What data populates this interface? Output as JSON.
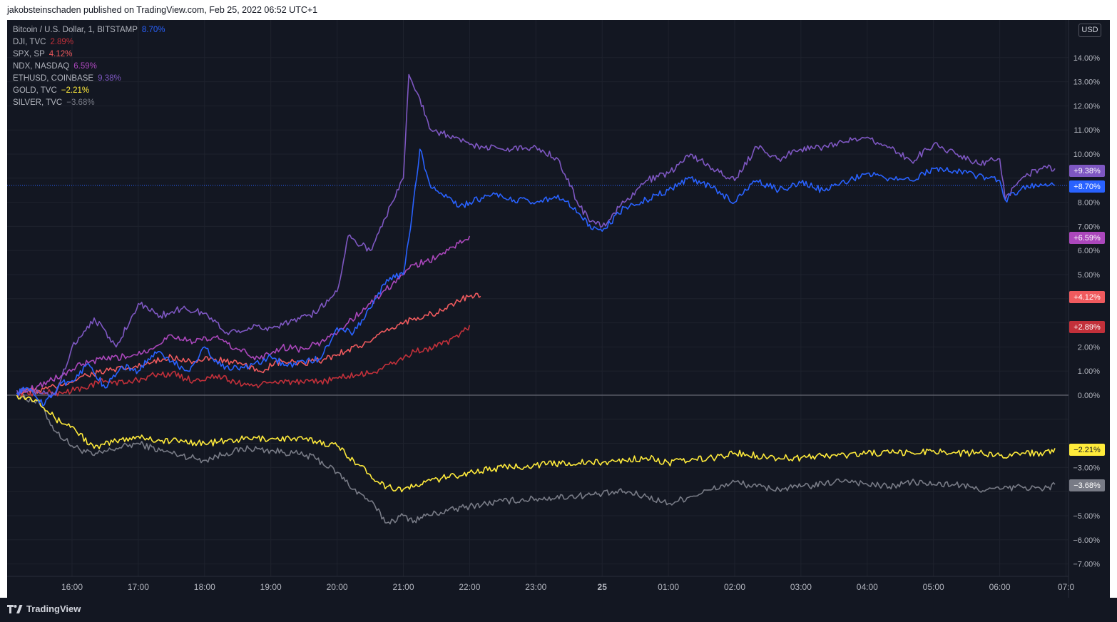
{
  "header": {
    "publisher_line": "jakobsteinschaden published on TradingView.com, Feb 25, 2022 06:52 UTC+1"
  },
  "toolbar": {
    "currency_label": "USD"
  },
  "footer": {
    "brand": "TradingView"
  },
  "colors": {
    "background": "#131722",
    "grid": "#1e222d",
    "zero_line": "#787b86",
    "btc": "#2962ff",
    "dji": "#c2303a",
    "spx": "#f05a5e",
    "ndx": "#ab47bc",
    "eth": "#7e57c2",
    "gold": "#ffeb3b",
    "silver": "#787b86"
  },
  "chart_data": {
    "type": "line",
    "title": "",
    "xlabel": "",
    "ylabel": "",
    "y_unit": "%",
    "ylim": [
      -7.7,
      15.0
    ],
    "y_ticks": [
      14,
      13,
      12,
      11,
      10,
      8,
      7,
      6,
      5,
      2,
      1,
      0,
      -3,
      -5,
      -6,
      -7
    ],
    "y_tick_labels": [
      "14.00%",
      "13.00%",
      "12.00%",
      "11.00%",
      "10.00%",
      "8.00%",
      "7.00%",
      "6.00%",
      "5.00%",
      "2.00%",
      "1.00%",
      "0.00%",
      "−3.00%",
      "−5.00%",
      "−6.00%",
      "−7.00%"
    ],
    "x_time_range": [
      "15:10",
      "07:00"
    ],
    "x_ticks": [
      "16:00",
      "17:00",
      "18:00",
      "19:00",
      "20:00",
      "21:00",
      "22:00",
      "23:00",
      "25",
      "01:00",
      "02:00",
      "03:00",
      "04:00",
      "05:00",
      "06:00",
      "07:0"
    ],
    "x_ticks_hours": [
      16,
      17,
      18,
      19,
      20,
      21,
      22,
      23,
      24,
      25,
      26,
      27,
      28,
      29,
      30,
      31
    ],
    "legend_placement": "top-left",
    "grid": true,
    "series": [
      {
        "key": "btc",
        "name": "Bitcoin / U.S. Dollar, 1, BITSTAMP",
        "last": "8.70%",
        "badge": "+8.70%",
        "color": "#2962ff",
        "dotted_last_line": true,
        "x": [
          "15:10",
          "15:20",
          "15:35",
          "15:50",
          "16:00",
          "16:15",
          "16:30",
          "16:45",
          "17:00",
          "17:15",
          "17:30",
          "17:45",
          "18:00",
          "18:15",
          "18:30",
          "18:45",
          "19:00",
          "19:15",
          "19:30",
          "19:45",
          "20:00",
          "20:15",
          "20:30",
          "20:45",
          "21:00",
          "21:05",
          "21:15",
          "21:25",
          "21:40",
          "21:50",
          "22:00",
          "22:20",
          "22:40",
          "23:00",
          "23:20",
          "23:40",
          "23:50",
          "24:00",
          "24:20",
          "24:40",
          "25:00",
          "25:20",
          "25:40",
          "26:00",
          "26:20",
          "26:40",
          "27:00",
          "27:20",
          "27:40",
          "28:00",
          "28:20",
          "28:40",
          "29:00",
          "29:20",
          "29:40",
          "30:00",
          "30:05",
          "30:20",
          "30:40",
          "30:50"
        ],
        "y": [
          0.1,
          0.3,
          -0.4,
          0.5,
          0.6,
          1.3,
          0.3,
          1.2,
          1.0,
          1.8,
          1.4,
          1.0,
          2.0,
          1.2,
          1.1,
          1.3,
          1.6,
          1.2,
          1.4,
          1.5,
          2.8,
          2.6,
          3.6,
          4.8,
          5.0,
          6.5,
          10.2,
          8.6,
          8.2,
          7.8,
          8.0,
          8.3,
          8.1,
          8.0,
          8.3,
          7.5,
          6.9,
          6.8,
          7.8,
          8.1,
          8.5,
          9.0,
          8.6,
          8.0,
          8.9,
          8.5,
          8.8,
          8.5,
          8.8,
          9.2,
          9.0,
          8.9,
          9.4,
          9.3,
          9.1,
          8.9,
          8.1,
          8.6,
          8.7,
          8.7
        ]
      },
      {
        "key": "dji",
        "name": "DJI, TVC",
        "last": "2.89%",
        "badge": "+2.89%",
        "color": "#c2303a",
        "x": [
          "15:10",
          "15:30",
          "15:50",
          "16:10",
          "16:30",
          "16:50",
          "17:10",
          "17:30",
          "17:50",
          "18:10",
          "18:30",
          "18:50",
          "19:10",
          "19:30",
          "19:50",
          "20:10",
          "20:30",
          "20:50",
          "21:10",
          "21:30",
          "21:50",
          "22:00"
        ],
        "y": [
          0.1,
          0.1,
          0.1,
          0.3,
          0.6,
          0.5,
          0.8,
          0.9,
          0.6,
          0.8,
          0.5,
          0.4,
          0.6,
          0.5,
          0.6,
          0.8,
          0.9,
          1.3,
          1.8,
          2.0,
          2.4,
          2.9
        ]
      },
      {
        "key": "spx",
        "name": "SPX, SP",
        "last": "4.12%",
        "badge": "+4.12%",
        "color": "#f05a5e",
        "x": [
          "15:10",
          "15:30",
          "15:50",
          "16:10",
          "16:30",
          "16:50",
          "17:10",
          "17:30",
          "17:50",
          "18:10",
          "18:30",
          "18:50",
          "19:10",
          "19:30",
          "19:50",
          "20:10",
          "20:30",
          "20:50",
          "21:10",
          "21:30",
          "21:50",
          "22:00",
          "22:10"
        ],
        "y": [
          0.1,
          0.2,
          0.4,
          0.8,
          1.0,
          1.1,
          1.3,
          1.6,
          1.4,
          1.5,
          1.3,
          1.0,
          1.4,
          1.3,
          1.5,
          1.9,
          2.2,
          2.8,
          3.2,
          3.4,
          3.9,
          4.1,
          4.1
        ]
      },
      {
        "key": "ndx",
        "name": "NDX, NASDAQ",
        "last": "6.59%",
        "badge": "+6.59%",
        "color": "#ab47bc",
        "x": [
          "15:10",
          "15:30",
          "15:50",
          "16:10",
          "16:30",
          "16:50",
          "17:10",
          "17:30",
          "17:50",
          "18:10",
          "18:30",
          "18:50",
          "19:10",
          "19:30",
          "19:50",
          "20:10",
          "20:30",
          "20:50",
          "21:10",
          "21:30",
          "21:50",
          "22:00"
        ],
        "y": [
          0.1,
          0.4,
          0.8,
          1.3,
          1.5,
          1.6,
          1.9,
          2.5,
          2.2,
          2.4,
          1.9,
          1.5,
          2.0,
          1.9,
          2.3,
          3.0,
          3.8,
          4.6,
          5.4,
          5.7,
          6.3,
          6.6
        ]
      },
      {
        "key": "eth",
        "name": "ETHUSD, COINBASE",
        "last": "9.38%",
        "badge": "+9.38%",
        "color": "#7e57c2",
        "x": [
          "15:10",
          "15:30",
          "15:45",
          "16:00",
          "16:20",
          "16:40",
          "17:00",
          "17:20",
          "17:40",
          "18:00",
          "18:20",
          "18:40",
          "19:00",
          "19:20",
          "19:40",
          "20:00",
          "20:10",
          "20:30",
          "20:50",
          "21:00",
          "21:05",
          "21:15",
          "21:25",
          "21:40",
          "22:00",
          "22:30",
          "23:00",
          "23:20",
          "23:40",
          "23:50",
          "24:00",
          "24:20",
          "24:40",
          "25:00",
          "25:20",
          "25:40",
          "26:00",
          "26:20",
          "26:40",
          "27:00",
          "27:20",
          "27:40",
          "28:00",
          "28:20",
          "28:40",
          "29:00",
          "29:20",
          "29:40",
          "30:00",
          "30:05",
          "30:20",
          "30:40",
          "30:50"
        ],
        "y": [
          0.2,
          0.1,
          0.0,
          2.0,
          3.2,
          2.0,
          3.8,
          3.3,
          3.6,
          3.4,
          2.6,
          2.8,
          2.8,
          3.1,
          3.4,
          4.3,
          6.6,
          6.0,
          8.0,
          9.0,
          13.3,
          12.3,
          11.0,
          10.8,
          10.4,
          10.2,
          10.3,
          9.8,
          7.8,
          7.2,
          7.0,
          8.0,
          8.9,
          9.2,
          10.0,
          9.4,
          8.9,
          10.3,
          9.8,
          10.2,
          10.3,
          10.5,
          10.7,
          10.3,
          9.7,
          10.4,
          10.0,
          9.6,
          9.8,
          8.1,
          9.0,
          9.5,
          9.4
        ]
      },
      {
        "key": "gold",
        "name": "GOLD, TVC",
        "last": "−2.21%",
        "badge": "−2.21%",
        "color": "#ffeb3b",
        "x": [
          "15:10",
          "15:30",
          "15:45",
          "16:00",
          "16:20",
          "16:40",
          "17:00",
          "17:20",
          "17:40",
          "18:00",
          "18:20",
          "18:40",
          "19:00",
          "19:20",
          "19:40",
          "20:00",
          "20:15",
          "20:30",
          "20:45",
          "21:00",
          "21:10",
          "21:20",
          "21:40",
          "22:00",
          "22:30",
          "23:00",
          "23:30",
          "24:00",
          "24:20",
          "24:40",
          "25:00",
          "25:20",
          "25:40",
          "26:00",
          "26:20",
          "26:40",
          "27:00",
          "27:20",
          "27:40",
          "28:00",
          "28:20",
          "28:40",
          "29:00",
          "29:20",
          "29:40",
          "30:00",
          "30:20",
          "30:40",
          "30:50"
        ],
        "y": [
          0.0,
          -0.2,
          -1.0,
          -1.3,
          -2.2,
          -1.9,
          -1.7,
          -1.9,
          -1.9,
          -2.0,
          -1.9,
          -1.8,
          -1.8,
          -1.8,
          -1.9,
          -2.1,
          -2.7,
          -3.3,
          -3.8,
          -3.9,
          -3.8,
          -3.6,
          -3.4,
          -3.2,
          -3.0,
          -2.9,
          -2.8,
          -2.8,
          -2.7,
          -2.6,
          -2.8,
          -2.7,
          -2.6,
          -2.4,
          -2.5,
          -2.6,
          -2.6,
          -2.5,
          -2.5,
          -2.4,
          -2.4,
          -2.4,
          -2.3,
          -2.4,
          -2.4,
          -2.5,
          -2.4,
          -2.4,
          -2.2
        ]
      },
      {
        "key": "silver",
        "name": "SILVER, TVC",
        "last": "−3.68%",
        "badge": "−3.68%",
        "color": "#787b86",
        "x": [
          "15:10",
          "15:30",
          "15:45",
          "16:00",
          "16:20",
          "16:40",
          "17:00",
          "17:20",
          "17:40",
          "18:00",
          "18:20",
          "18:40",
          "19:00",
          "19:20",
          "19:40",
          "20:00",
          "20:15",
          "20:30",
          "20:45",
          "21:00",
          "21:10",
          "21:20",
          "21:40",
          "22:00",
          "22:30",
          "23:00",
          "23:30",
          "24:00",
          "24:20",
          "24:40",
          "25:00",
          "25:20",
          "25:40",
          "26:00",
          "26:20",
          "26:40",
          "27:00",
          "27:20",
          "27:40",
          "28:00",
          "28:20",
          "28:40",
          "29:00",
          "29:20",
          "29:40",
          "30:00",
          "30:20",
          "30:40",
          "30:50"
        ],
        "y": [
          0.0,
          -0.3,
          -1.5,
          -2.1,
          -2.5,
          -2.2,
          -2.0,
          -2.3,
          -2.5,
          -2.7,
          -2.4,
          -2.2,
          -2.3,
          -2.4,
          -2.6,
          -3.2,
          -3.9,
          -4.4,
          -5.3,
          -5.0,
          -5.2,
          -5.0,
          -4.8,
          -4.6,
          -4.4,
          -4.3,
          -4.2,
          -4.1,
          -4.0,
          -4.2,
          -4.5,
          -4.2,
          -3.9,
          -3.6,
          -3.8,
          -3.9,
          -3.8,
          -3.7,
          -3.5,
          -3.7,
          -3.8,
          -3.6,
          -3.7,
          -3.7,
          -3.9,
          -3.9,
          -3.8,
          -3.9,
          -3.7
        ]
      }
    ]
  }
}
